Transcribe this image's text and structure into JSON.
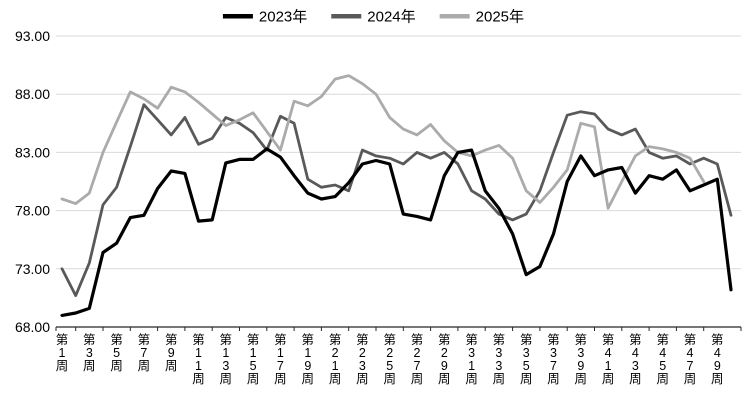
{
  "chart_data": {
    "type": "line",
    "title": "",
    "grid": true,
    "legend": {
      "position": "top-center",
      "entries": [
        "2023年",
        "2024年",
        "2025年"
      ]
    },
    "y_axis": {
      "min": 68,
      "max": 93,
      "ticks": [
        93,
        88,
        83,
        78,
        73,
        68
      ],
      "tick_labels": [
        "93.00",
        "88.00",
        "83.00",
        "78.00",
        "73.00",
        "68.00"
      ]
    },
    "x_axis": {
      "n_points": 50,
      "tick_weeks": [
        1,
        3,
        5,
        7,
        9,
        11,
        13,
        15,
        17,
        19,
        21,
        23,
        25,
        27,
        29,
        31,
        33,
        35,
        37,
        39,
        41,
        43,
        45,
        47,
        49
      ],
      "tick_labels": [
        "第1周",
        "第3周",
        "第5周",
        "第7周",
        "第9周",
        "第11周",
        "第13周",
        "第15周",
        "第17周",
        "第19周",
        "第21周",
        "第23周",
        "第25周",
        "第27周",
        "第29周",
        "第31周",
        "第33周",
        "第35周",
        "第37周",
        "第39周",
        "第41周",
        "第43周",
        "第45周",
        "第47周",
        "第49周"
      ]
    },
    "series": [
      {
        "name": "2023年",
        "color": "#000000",
        "stroke_width": 3.2,
        "values": [
          69.0,
          69.2,
          69.6,
          74.4,
          75.2,
          77.4,
          77.6,
          79.9,
          81.4,
          81.2,
          77.1,
          77.2,
          82.1,
          82.4,
          82.4,
          83.3,
          82.6,
          81.0,
          79.5,
          79.0,
          79.2,
          80.4,
          82.0,
          82.3,
          82.0,
          77.7,
          77.5,
          77.2,
          81.0,
          83.0,
          83.2,
          79.7,
          78.2,
          76.0,
          72.5,
          73.2,
          76.0,
          80.5,
          82.7,
          81.0,
          81.5,
          81.7,
          79.5,
          81.0,
          80.7,
          81.5,
          79.7,
          80.2,
          80.7,
          71.2
        ]
      },
      {
        "name": "2024年",
        "color": "#595959",
        "stroke_width": 2.8,
        "values": [
          73.0,
          70.7,
          73.5,
          78.5,
          80.0,
          83.5,
          87.1,
          85.8,
          84.5,
          86.0,
          83.7,
          84.2,
          86.0,
          85.5,
          84.7,
          83.2,
          86.1,
          85.5,
          80.7,
          80.0,
          80.2,
          79.7,
          83.2,
          82.7,
          82.5,
          82.0,
          83.0,
          82.5,
          83.0,
          82.0,
          79.7,
          79.0,
          77.7,
          77.2,
          77.7,
          79.7,
          83.0,
          86.2,
          86.5,
          86.3,
          85.0,
          84.5,
          85.0,
          83.0,
          82.5,
          82.7,
          82.0,
          82.5,
          82.0,
          77.6
        ]
      },
      {
        "name": "2025年",
        "color": "#ababab",
        "stroke_width": 2.8,
        "values": [
          79.0,
          78.6,
          79.5,
          83.0,
          85.6,
          88.2,
          87.6,
          86.8,
          88.6,
          88.2,
          87.3,
          86.3,
          85.3,
          85.8,
          86.4,
          84.8,
          83.2,
          87.4,
          87.0,
          87.8,
          89.3,
          89.6,
          88.9,
          88.0,
          86.0,
          85.0,
          84.5,
          85.4,
          84.0,
          83.0,
          82.7,
          83.2,
          83.6,
          82.5,
          79.7,
          78.7,
          80.0,
          81.5,
          85.5,
          85.2,
          78.2,
          80.5,
          82.7,
          83.5,
          83.3,
          83.0,
          82.5,
          80.5,
          null,
          null
        ]
      }
    ],
    "colors": {
      "axis": "#262626",
      "gridline": "#d9d9d9",
      "text": "#000000"
    }
  }
}
